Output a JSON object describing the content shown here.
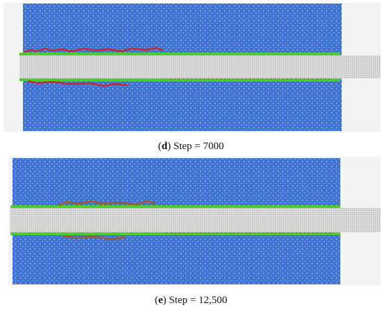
{
  "panels": [
    {
      "caption_parts": [
        "(",
        "d",
        ") Step = 7000"
      ]
    },
    {
      "caption_parts": [
        "(",
        "e",
        ") Step = 12,500"
      ]
    }
  ]
}
